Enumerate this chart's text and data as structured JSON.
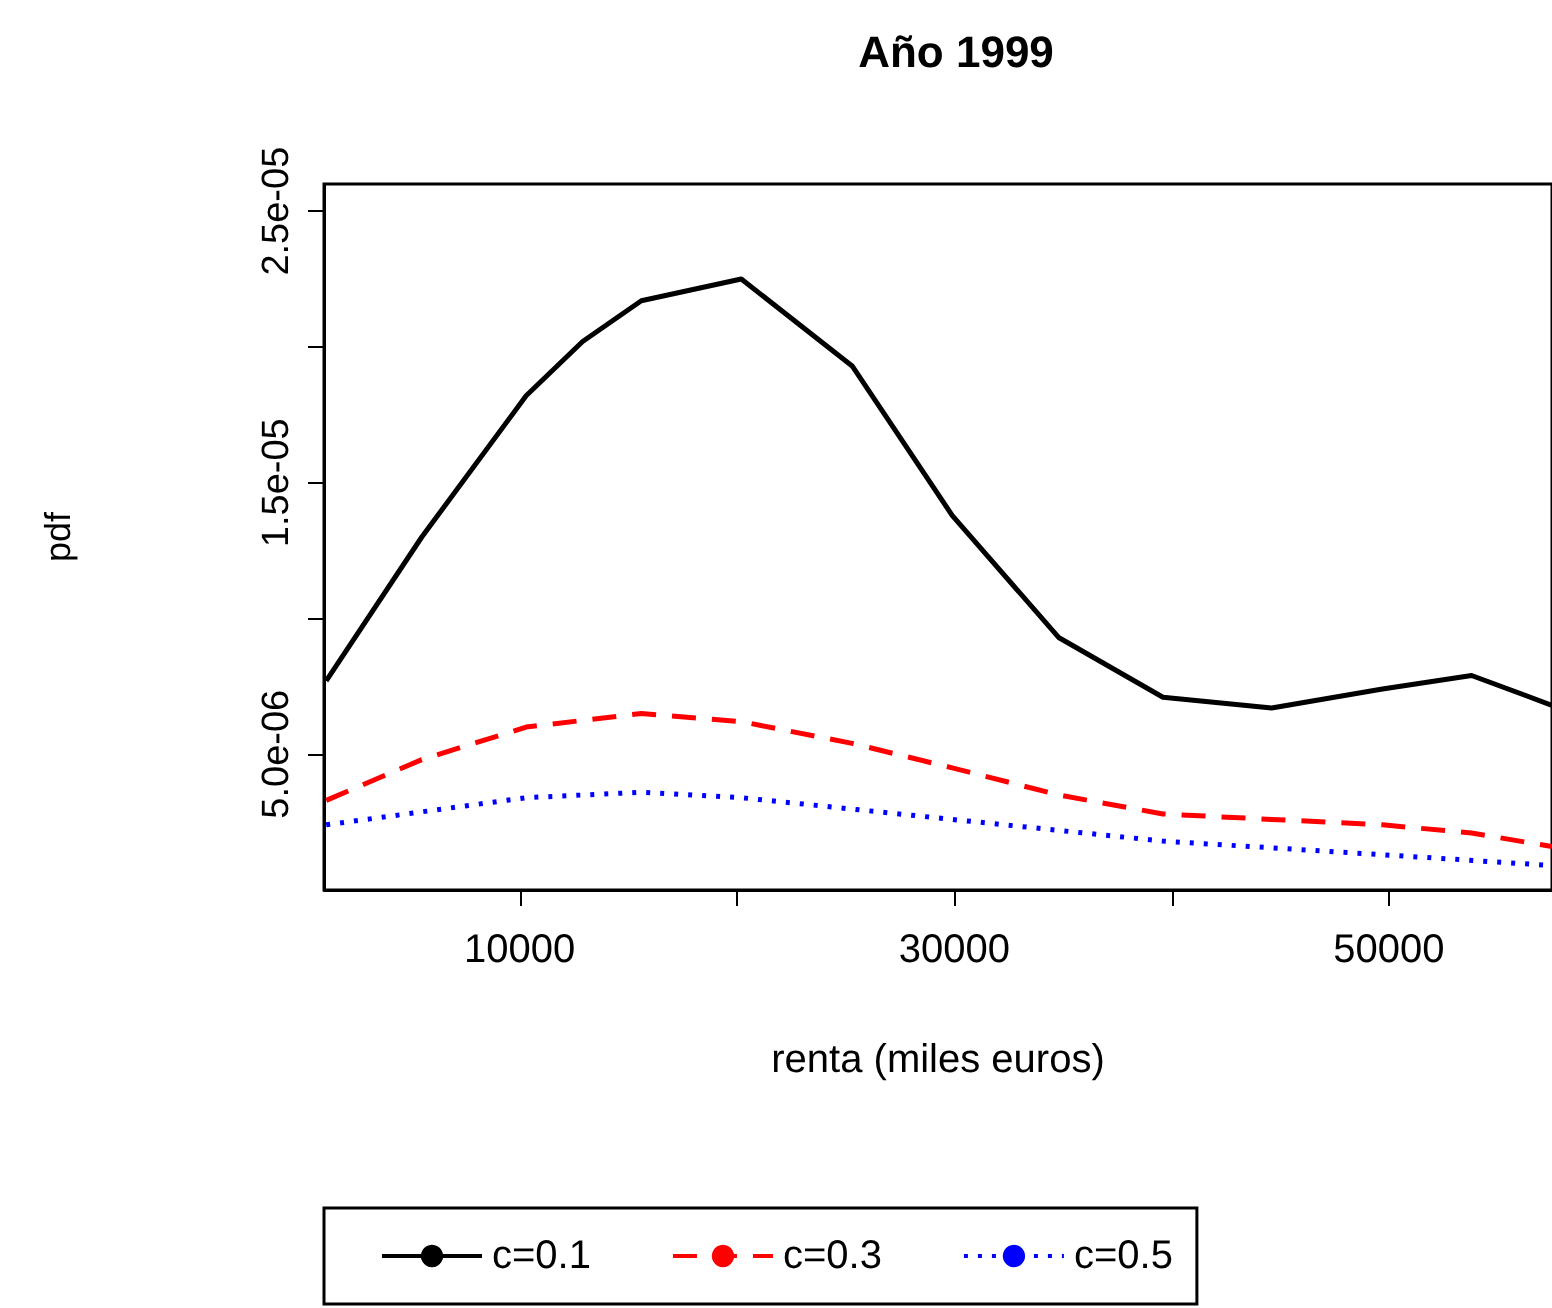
{
  "chart_data": {
    "type": "line",
    "title": "Año 1999",
    "xlabel": "renta (miles euros)",
    "ylabel": "pdf",
    "xlim": [
      1000,
      57500
    ],
    "ylim": [
      0,
      2.6e-05
    ],
    "xticks": [
      10000,
      {
        "value": 20000,
        "label": null
      },
      30000,
      {
        "value": 40000,
        "label": null
      },
      50000
    ],
    "yticks": [
      {
        "value": 5e-06,
        "label": "5.0e-06"
      },
      {
        "value": 1e-05,
        "label": null
      },
      {
        "value": 1.5e-05,
        "label": "1.5e-05"
      },
      {
        "value": 2e-05,
        "label": null
      },
      {
        "value": 2.5e-05,
        "label": "2.5e-05"
      }
    ],
    "grid": false,
    "legend": "bottom",
    "marker": "none",
    "series": [
      {
        "name": "c=0.1",
        "color": "#000000",
        "line_style": "solid",
        "x": [
          1100,
          5500,
          10300,
          12900,
          15600,
          20200,
          25300,
          29900,
          34800,
          39600,
          44600,
          49700,
          53800,
          57500
        ],
        "values": [
          7.7e-06,
          1.3e-05,
          1.82e-05,
          2.02e-05,
          2.17e-05,
          2.25e-05,
          1.93e-05,
          1.38e-05,
          9.3e-06,
          7.1e-06,
          6.7e-06,
          7.4e-06,
          7.9e-06,
          6.8e-06
        ]
      },
      {
        "name": "c=0.3",
        "color": "#ff0000",
        "line_style": "dashed",
        "x": [
          1100,
          5500,
          10300,
          15600,
          20200,
          25300,
          29900,
          34800,
          39600,
          44600,
          49700,
          53800,
          57500
        ],
        "values": [
          3.3e-06,
          4.8e-06,
          6e-06,
          6.5e-06,
          6.2e-06,
          5.4e-06,
          4.5e-06,
          3.5e-06,
          2.8e-06,
          2.6e-06,
          2.4e-06,
          2.1e-06,
          1.6e-06
        ]
      },
      {
        "name": "c=0.5",
        "color": "#0000ff",
        "line_style": "dotted",
        "x": [
          1100,
          10300,
          15600,
          20200,
          29900,
          39600,
          49700,
          57500
        ],
        "values": [
          2.4e-06,
          3.4e-06,
          3.6e-06,
          3.4e-06,
          2.6e-06,
          1.8e-06,
          1.3e-06,
          9e-07
        ]
      }
    ]
  }
}
